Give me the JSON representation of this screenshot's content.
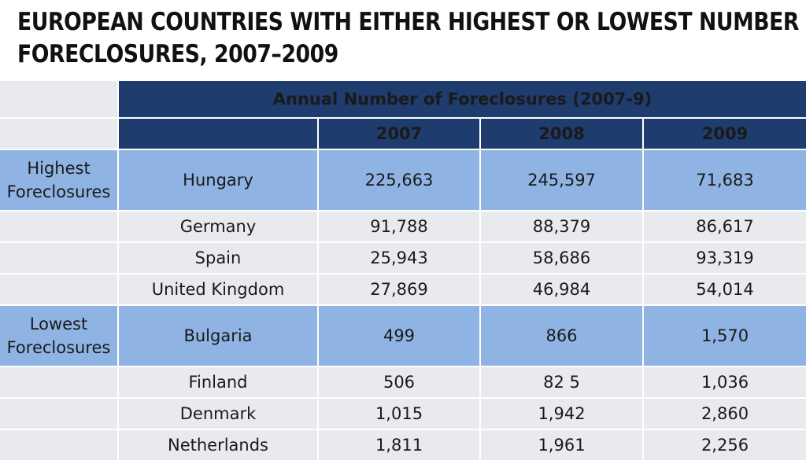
{
  "title": {
    "line1": "EUROPEAN COUNTRIES WITH EITHER HIGHEST OR LOWEST NUMBER OF",
    "line2": "FORECLOSURES, 2007–2009"
  },
  "table": {
    "header": "Annual Number of Foreclosures (2007-9)",
    "years": [
      "2007",
      "2008",
      "2009"
    ],
    "groups": [
      {
        "label_line1": "Highest",
        "label_line2": "Foreclosures",
        "rows": [
          {
            "country": "Hungary",
            "values": [
              "225,663",
              "245,597",
              "71,683"
            ]
          },
          {
            "country": "Germany",
            "values": [
              "91,788",
              "88,379",
              "86,617"
            ]
          },
          {
            "country": "Spain",
            "values": [
              "25,943",
              "58,686",
              "93,319"
            ]
          },
          {
            "country": "United Kingdom",
            "values": [
              "27,869",
              "46,984",
              "54,014"
            ]
          }
        ]
      },
      {
        "label_line1": "Lowest",
        "label_line2": "Foreclosures",
        "rows": [
          {
            "country": "Bulgaria",
            "values": [
              "499",
              "866",
              "1,570"
            ]
          },
          {
            "country": "Finland",
            "values": [
              "506",
              "82 5",
              "1,036"
            ]
          },
          {
            "country": "Denmark",
            "values": [
              "1,015",
              "1,942",
              "2,860"
            ]
          },
          {
            "country": "Netherlands",
            "values": [
              "1,811",
              "1,961",
              "2,256"
            ]
          }
        ]
      }
    ]
  },
  "colors": {
    "header_bg": "#1f3c6e",
    "highlight_bg": "#8fb4e3",
    "row_bg": "#e8eaee"
  }
}
